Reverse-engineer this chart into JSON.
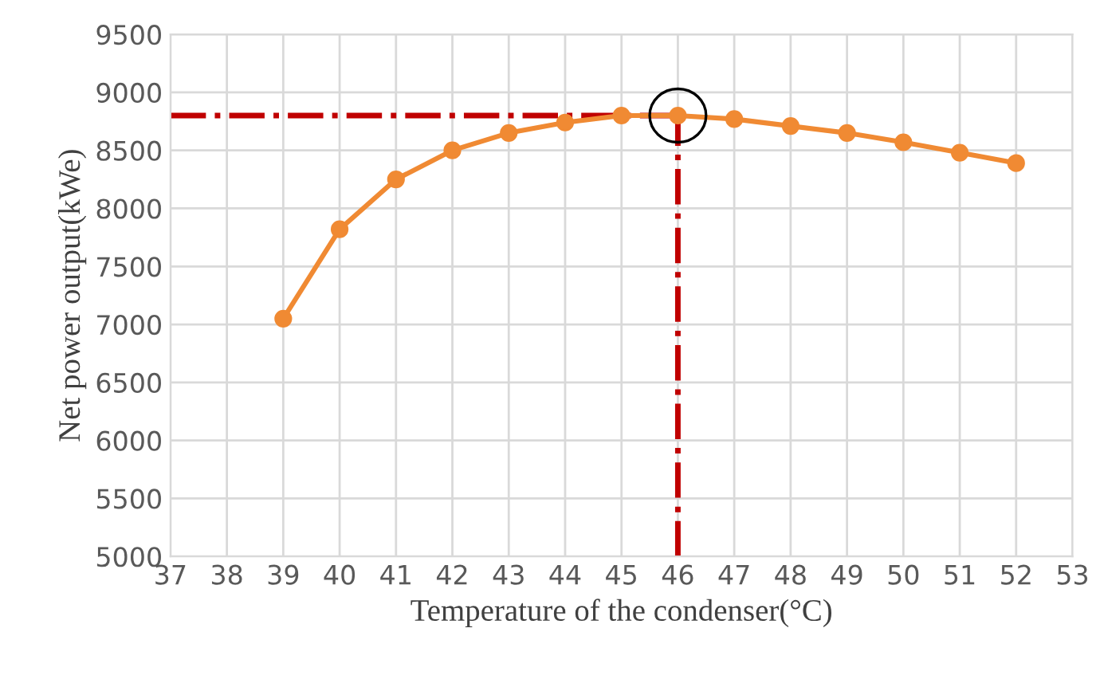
{
  "chart_data": {
    "type": "line",
    "xlabel": "Temperature of the condenser(°C)",
    "ylabel": "Net power output(kWe)",
    "x": [
      39,
      40,
      41,
      42,
      43,
      44,
      45,
      46,
      47,
      48,
      49,
      50,
      51,
      52
    ],
    "series": [
      {
        "color": "#f08a33",
        "values": [
          7050,
          7820,
          8250,
          8500,
          8650,
          8740,
          8800,
          8800,
          8770,
          8710,
          8650,
          8570,
          8480,
          8390
        ]
      }
    ],
    "marker": "circle",
    "line_style": "solid",
    "grid": true,
    "xlim": [
      37,
      53
    ],
    "xticks": [
      37,
      38,
      39,
      40,
      41,
      42,
      43,
      44,
      45,
      46,
      47,
      48,
      49,
      50,
      51,
      52,
      53
    ],
    "ylim": [
      5000,
      9500
    ],
    "yticks": [
      5000,
      5500,
      6000,
      6500,
      7000,
      7500,
      8000,
      8500,
      9000,
      9500
    ],
    "ref_lines": [
      {
        "axis": "y",
        "value": 8800,
        "label": null,
        "color": "#c00000",
        "line_style": "dashdot"
      },
      {
        "axis": "x",
        "value": 46,
        "label": null,
        "color": "#c00000",
        "line_style": "dashdot"
      }
    ]
  }
}
